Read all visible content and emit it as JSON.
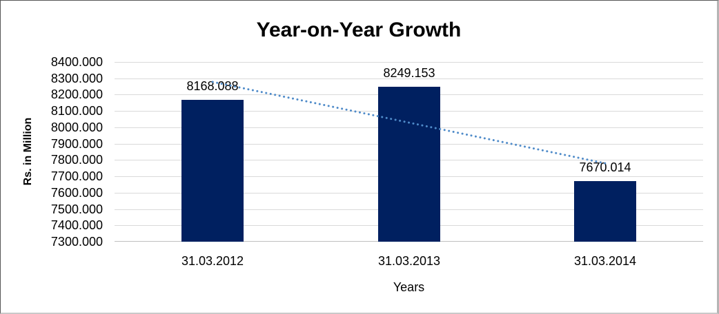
{
  "chart_data": {
    "type": "bar",
    "title": "Year-on-Year Growth",
    "xlabel": "Years",
    "ylabel": "Rs. in Million",
    "categories": [
      "31.03.2012",
      "31.03.2013",
      "31.03.2014"
    ],
    "values": [
      8168.088,
      8249.153,
      7670.014
    ],
    "data_labels": [
      "8168.088",
      "8249.153",
      "7670.014"
    ],
    "ylim": [
      7300,
      8400
    ],
    "ytick_step": 100,
    "ytick_labels": [
      "8400.000",
      "8300.000",
      "8200.000",
      "8100.000",
      "8000.000",
      "7900.000",
      "7800.000",
      "7700.000",
      "7600.000",
      "7500.000",
      "7400.000",
      "7300.000"
    ],
    "grid": true,
    "legend": "none",
    "trendline": {
      "type": "linear",
      "style": "dotted",
      "start_value": 8278.1,
      "end_value": 7780.0
    },
    "colors": {
      "bar": "#002060",
      "trendline": "#4f8bc9",
      "gridline": "#d9d9d9",
      "axis_line": "#bfbfbf",
      "text": "#000000"
    }
  }
}
